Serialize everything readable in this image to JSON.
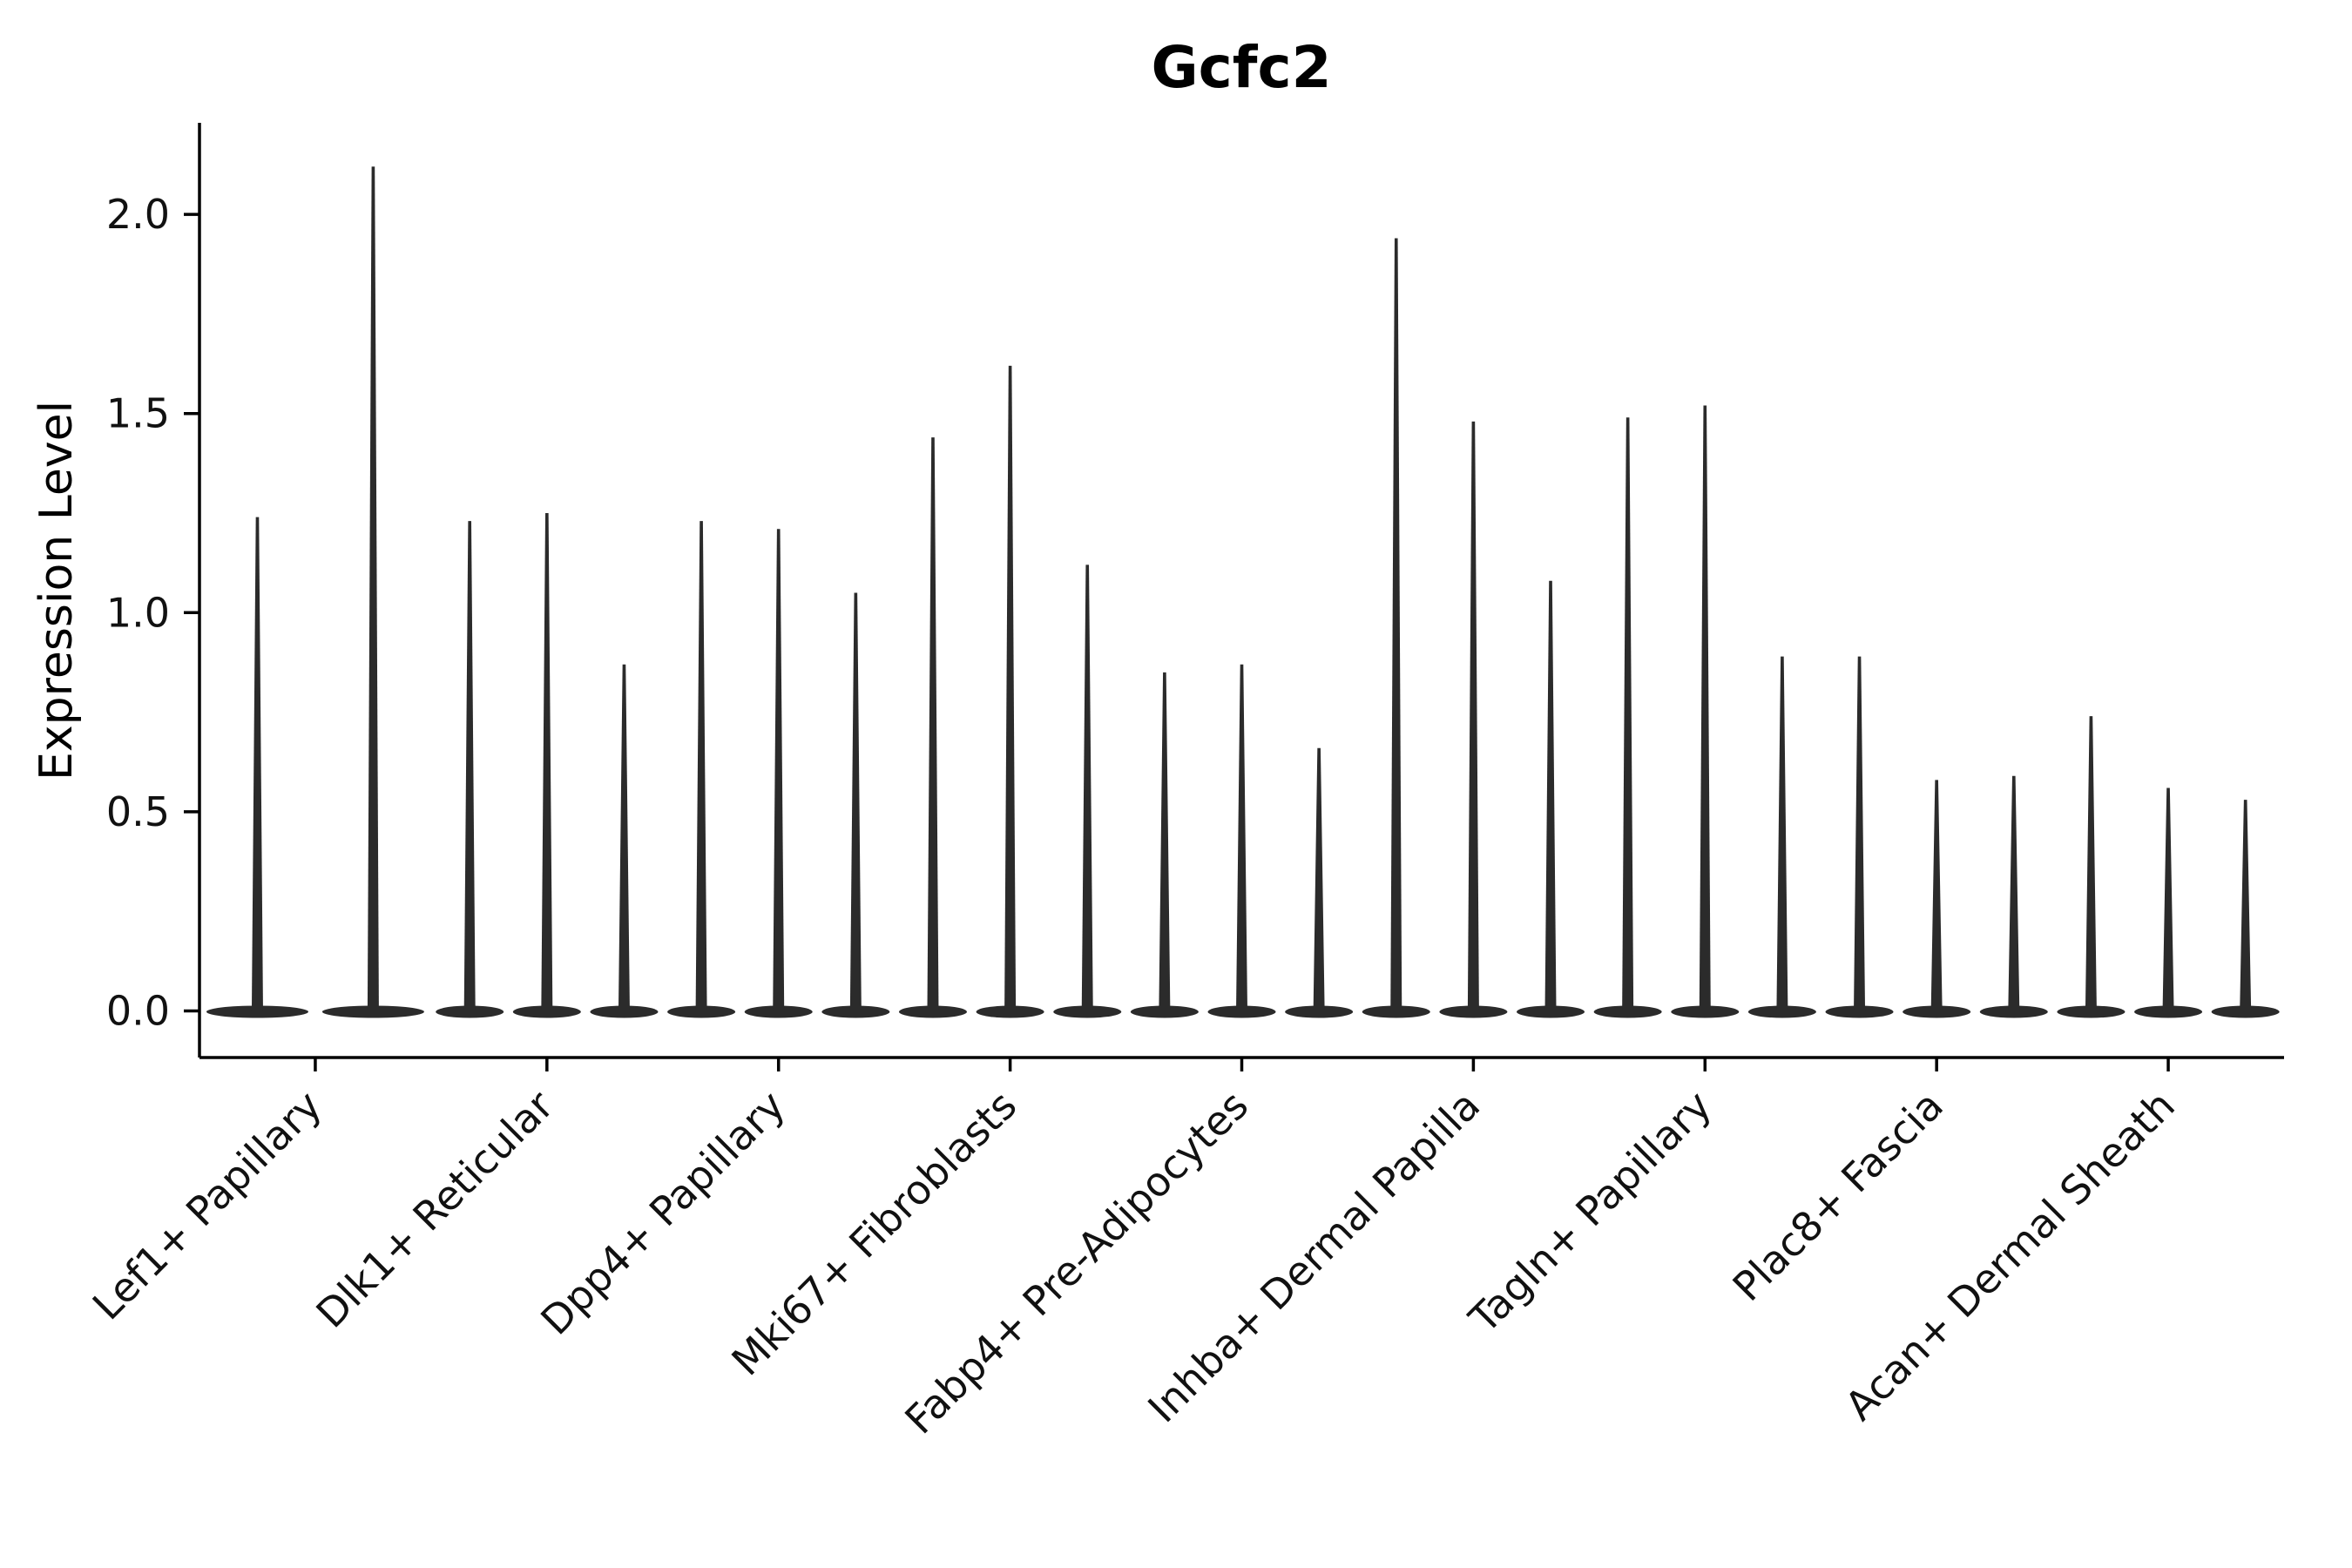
{
  "chart_data": {
    "type": "violin",
    "title": "Gcfc2",
    "ylabel": "Expression Level",
    "xlabel": "",
    "ylim": [
      -0.12,
      2.23
    ],
    "yticks": [
      "0.0",
      "0.5",
      "1.0",
      "1.5",
      "2.0"
    ],
    "grid": false,
    "legend": false,
    "violin_color": "#2b2b2b",
    "axis_color": "#000000",
    "background_color": "#ffffff",
    "baseline_value": 0.0,
    "groups": [
      {
        "category": "Lef1+ Papillary",
        "violin_max": [
          1.24,
          2.12
        ]
      },
      {
        "category": "Dlk1+ Reticular",
        "violin_max": [
          1.23,
          1.25,
          0.87
        ]
      },
      {
        "category": "Dpp4+ Papillary",
        "violin_max": [
          1.23,
          1.21,
          1.05
        ]
      },
      {
        "category": "Mki67+ Fibroblasts",
        "violin_max": [
          1.44,
          1.62,
          1.12
        ]
      },
      {
        "category": "Fabp4+ Pre-Adipocytes",
        "violin_max": [
          0.85,
          0.87,
          0.66
        ]
      },
      {
        "category": "Inhba+ Dermal Papilla",
        "violin_max": [
          1.94,
          1.48,
          1.08
        ]
      },
      {
        "category": "Tagln+ Papillary",
        "violin_max": [
          1.49,
          1.52,
          0.89
        ]
      },
      {
        "category": "Plac8+ Fascia",
        "violin_max": [
          0.89,
          0.58,
          0.59
        ]
      },
      {
        "category": "Acan+ Dermal Sheath",
        "violin_max": [
          0.74,
          0.56,
          0.53
        ]
      }
    ]
  }
}
